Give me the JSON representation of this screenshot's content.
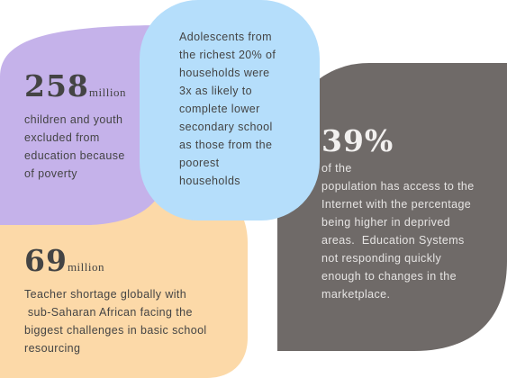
{
  "blocks": [
    {
      "stat": "258",
      "unit": "million",
      "lines": [
        "children and youth",
        "excluded from",
        "education because",
        "of poverty"
      ]
    },
    {
      "lines": [
        "Adolescents from",
        "the richest 20% of",
        "households were",
        "3x as likely to",
        "complete lower",
        "secondary school",
        "as those from the",
        "poorest",
        "households"
      ]
    },
    {
      "stat": "39%",
      "lines": [
        "of the",
        "population has access to the",
        "Internet with the percentage",
        "being higher in deprived",
        "areas.  Education Systems",
        "not responding quickly",
        "enough to changes in the",
        "marketplace."
      ]
    },
    {
      "stat": "69",
      "unit": "million",
      "lines": [
        "Teacher shortage globally with",
        " sub-Saharan African facing the",
        "biggest challenges in basic school",
        "resourcing"
      ]
    }
  ]
}
